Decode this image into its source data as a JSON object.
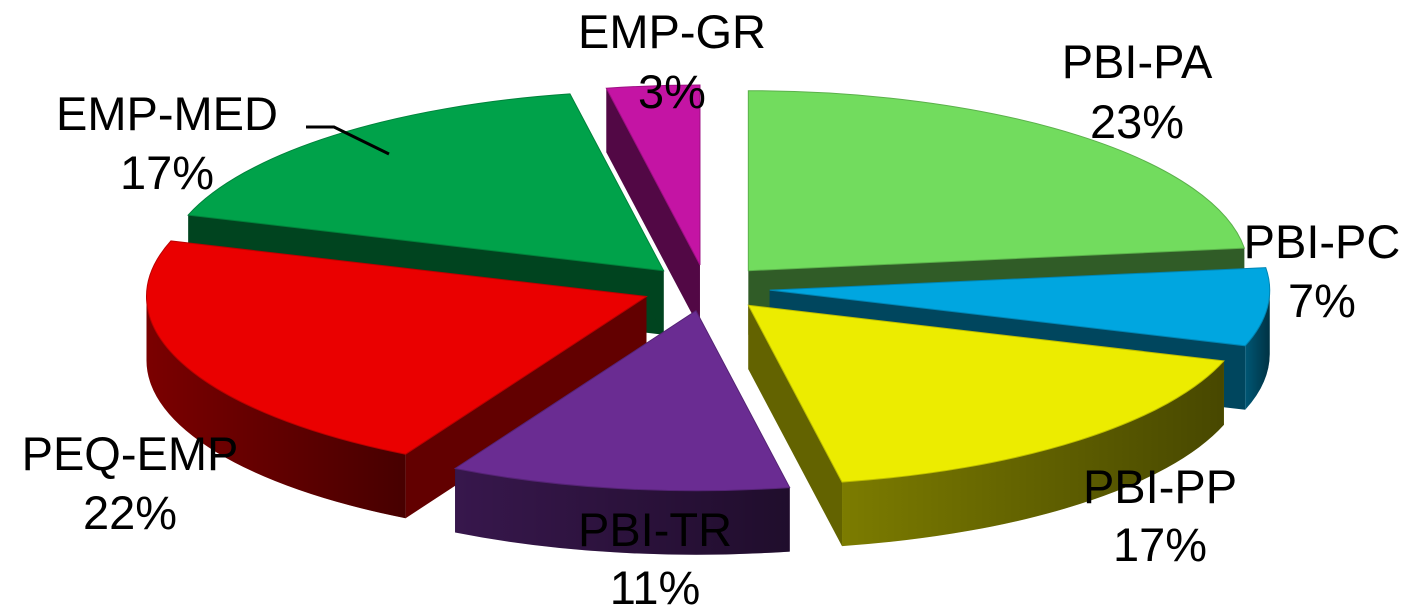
{
  "chart_data": {
    "type": "pie",
    "style": "3d-exploded",
    "legend": "none",
    "slices": [
      {
        "label": "PBI-PA",
        "value": 23,
        "percent_label": "23%",
        "color": "#72dc5e"
      },
      {
        "label": "PBI-PC",
        "value": 7,
        "percent_label": "7%",
        "color": "#00a6e0"
      },
      {
        "label": "PBI-PP",
        "value": 17,
        "percent_label": "17%",
        "color": "#ecec00"
      },
      {
        "label": "PBI-TR",
        "value": 11,
        "percent_label": "11%",
        "color": "#6a2c92"
      },
      {
        "label": "PEQ-EMP",
        "value": 22,
        "percent_label": "22%",
        "color": "#ea0000"
      },
      {
        "label": "EMP-MED",
        "value": 17,
        "percent_label": "17%",
        "color": "#00a24a"
      },
      {
        "label": "EMP-GR",
        "value": 3,
        "percent_label": "3%",
        "color": "#c414a4"
      }
    ]
  }
}
